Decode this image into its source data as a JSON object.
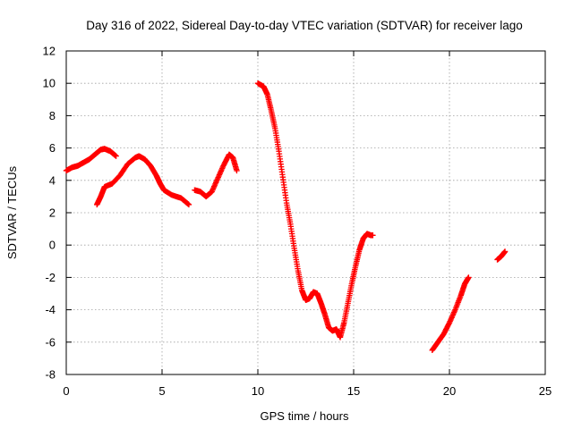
{
  "chart_data": {
    "type": "scatter",
    "title": "Day 316 of 2022, Sidereal Day-to-day VTEC variation (SDTVAR) for receiver lago",
    "xlabel": "GPS time / hours",
    "ylabel": "SDTVAR / TECUs",
    "xlim": [
      0,
      25
    ],
    "ylim": [
      -8,
      12
    ],
    "xticks": [
      0,
      5,
      10,
      15,
      20,
      25
    ],
    "yticks": [
      -8,
      -6,
      -4,
      -2,
      0,
      2,
      4,
      6,
      8,
      10,
      12
    ],
    "grid": true,
    "marker": "plus",
    "color": "#ff0000",
    "series": [
      {
        "x": [
          0.0,
          0.3,
          0.6,
          0.9,
          1.2,
          1.5,
          1.8,
          2.0,
          2.3,
          2.6
        ],
        "y": [
          4.6,
          4.8,
          4.9,
          5.1,
          5.3,
          5.6,
          5.9,
          5.95,
          5.8,
          5.5
        ]
      },
      {
        "x": [
          1.6,
          1.8,
          2.0,
          2.4,
          2.8,
          3.2,
          3.6,
          3.8,
          4.1,
          4.4,
          4.7,
          4.9,
          5.1,
          5.5,
          6.0,
          6.4
        ],
        "y": [
          2.5,
          3.0,
          3.6,
          3.8,
          4.3,
          5.0,
          5.4,
          5.5,
          5.3,
          4.9,
          4.3,
          3.8,
          3.4,
          3.1,
          2.9,
          2.5
        ]
      },
      {
        "x": [
          6.7,
          7.0,
          7.3,
          7.6,
          7.9,
          8.2,
          8.5,
          8.7,
          8.9
        ],
        "y": [
          3.4,
          3.3,
          3.0,
          3.3,
          4.1,
          4.9,
          5.6,
          5.4,
          4.6
        ]
      },
      {
        "x": [
          10.0,
          10.3,
          10.5,
          10.7,
          10.9,
          11.1,
          11.3,
          11.5,
          11.7,
          11.9,
          12.1,
          12.3,
          12.5,
          12.7,
          12.9,
          13.1,
          13.3,
          13.5,
          13.7,
          13.9,
          14.1,
          14.3,
          14.5,
          14.7,
          14.9,
          15.1,
          15.3,
          15.5,
          15.7,
          15.9,
          16.0
        ],
        "y": [
          10.0,
          9.8,
          9.3,
          8.3,
          7.2,
          5.8,
          4.2,
          2.6,
          1.3,
          -0.2,
          -1.6,
          -2.8,
          -3.4,
          -3.3,
          -2.9,
          -3.0,
          -3.6,
          -4.3,
          -5.1,
          -5.3,
          -5.2,
          -5.7,
          -4.8,
          -3.6,
          -2.4,
          -1.3,
          -0.3,
          0.4,
          0.7,
          0.6,
          0.6
        ]
      },
      {
        "x": [
          19.1,
          19.4,
          19.7,
          20.0,
          20.3,
          20.6,
          20.8,
          21.0
        ],
        "y": [
          -6.5,
          -6.0,
          -5.5,
          -4.8,
          -4.0,
          -3.1,
          -2.4,
          -2.0
        ]
      },
      {
        "x": [
          22.5,
          22.7,
          22.9
        ],
        "y": [
          -0.9,
          -0.7,
          -0.4
        ]
      }
    ]
  }
}
